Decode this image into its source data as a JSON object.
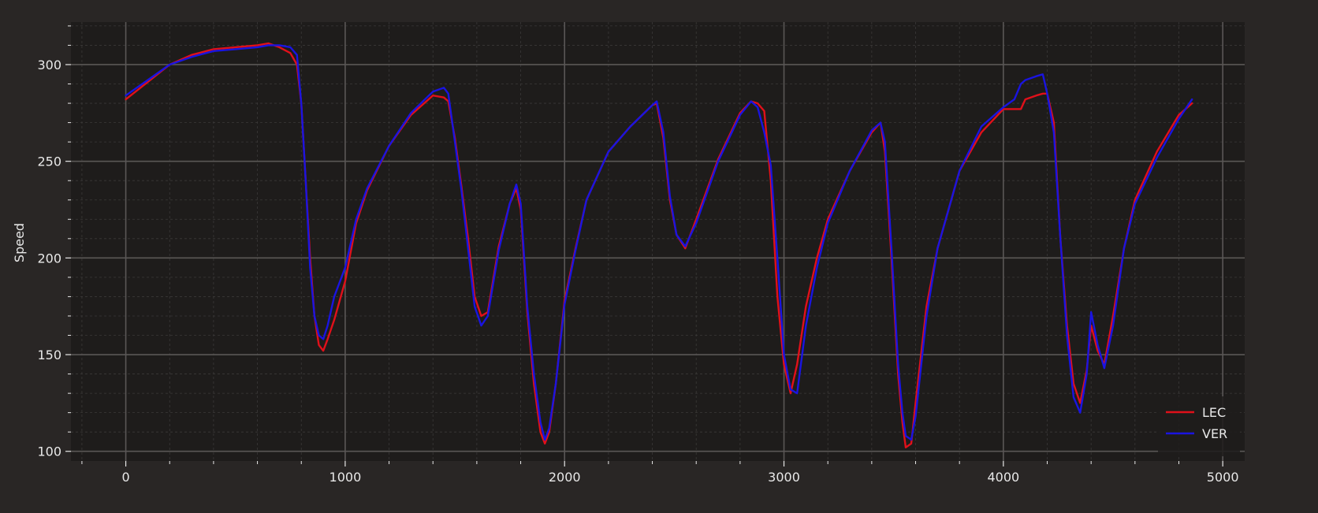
{
  "chart_data": {
    "type": "line",
    "title": "",
    "xlabel": "",
    "ylabel": "Speed",
    "xlim": [
      -250,
      5100
    ],
    "ylim": [
      95,
      322
    ],
    "xticks": [
      0,
      1000,
      2000,
      3000,
      4000,
      5000
    ],
    "yticks": [
      100,
      150,
      200,
      250,
      300
    ],
    "xtick_labels": [
      "0",
      "1000",
      "2000",
      "3000",
      "4000",
      "5000"
    ],
    "ytick_labels": [
      "100",
      "150",
      "200",
      "250",
      "300"
    ],
    "grid": true,
    "legend_position": "lower-right",
    "colors": {
      "figure_bg": "#292625",
      "axes_bg": "#1e1c1b",
      "major_grid": "#5a5756",
      "minor_grid": "#3b3938",
      "text": "#e8e8e8"
    },
    "series": [
      {
        "name": "LEC",
        "color": "#e0101a",
        "x": [
          0,
          100,
          200,
          300,
          400,
          500,
          600,
          650,
          700,
          750,
          780,
          800,
          820,
          840,
          860,
          880,
          900,
          920,
          950,
          1000,
          1050,
          1100,
          1200,
          1300,
          1400,
          1450,
          1470,
          1500,
          1530,
          1560,
          1590,
          1620,
          1650,
          1700,
          1750,
          1780,
          1800,
          1830,
          1860,
          1890,
          1910,
          1930,
          1960,
          2000,
          2050,
          2100,
          2200,
          2300,
          2400,
          2420,
          2450,
          2480,
          2510,
          2550,
          2600,
          2700,
          2800,
          2850,
          2880,
          2910,
          2940,
          2970,
          3000,
          3030,
          3060,
          3100,
          3150,
          3200,
          3300,
          3400,
          3440,
          3460,
          3490,
          3520,
          3540,
          3555,
          3580,
          3600,
          3650,
          3700,
          3800,
          3900,
          4000,
          4050,
          4080,
          4100,
          4150,
          4180,
          4200,
          4230,
          4260,
          4290,
          4320,
          4350,
          4380,
          4400,
          4430,
          4460,
          4500,
          4550,
          4600,
          4700,
          4800,
          4860
        ],
        "y": [
          282,
          291,
          300,
          305,
          308,
          309,
          310,
          311,
          309,
          306,
          300,
          280,
          240,
          200,
          170,
          155,
          152,
          158,
          168,
          188,
          218,
          235,
          258,
          274,
          284,
          283,
          281,
          262,
          237,
          210,
          180,
          170,
          172,
          206,
          228,
          236,
          225,
          172,
          135,
          110,
          104,
          110,
          135,
          178,
          205,
          230,
          255,
          268,
          279,
          280,
          262,
          230,
          212,
          205,
          220,
          251,
          275,
          281,
          280,
          276,
          240,
          180,
          145,
          130,
          145,
          175,
          200,
          220,
          245,
          265,
          270,
          255,
          200,
          140,
          115,
          102,
          104,
          125,
          175,
          205,
          245,
          265,
          277,
          277,
          277,
          282,
          284,
          285,
          285,
          270,
          210,
          165,
          135,
          125,
          142,
          165,
          152,
          145,
          170,
          205,
          230,
          255,
          274,
          280
        ]
      },
      {
        "name": "VER",
        "color": "#1a14e0",
        "x": [
          0,
          100,
          200,
          300,
          400,
          500,
          600,
          650,
          700,
          750,
          780,
          800,
          820,
          840,
          860,
          880,
          900,
          920,
          950,
          1000,
          1050,
          1100,
          1200,
          1300,
          1400,
          1450,
          1470,
          1500,
          1530,
          1560,
          1590,
          1620,
          1650,
          1700,
          1750,
          1780,
          1800,
          1830,
          1860,
          1890,
          1910,
          1930,
          1960,
          2000,
          2050,
          2100,
          2200,
          2300,
          2400,
          2420,
          2450,
          2480,
          2510,
          2550,
          2600,
          2700,
          2800,
          2850,
          2880,
          2910,
          2940,
          2970,
          3000,
          3030,
          3060,
          3100,
          3150,
          3200,
          3300,
          3400,
          3440,
          3460,
          3490,
          3520,
          3540,
          3555,
          3580,
          3600,
          3650,
          3700,
          3800,
          3900,
          4000,
          4050,
          4080,
          4100,
          4150,
          4180,
          4200,
          4230,
          4260,
          4290,
          4320,
          4350,
          4380,
          4400,
          4430,
          4460,
          4500,
          4550,
          4600,
          4700,
          4800,
          4860
        ],
        "y": [
          284,
          292,
          300,
          304,
          307,
          308,
          309,
          310,
          310,
          309,
          305,
          280,
          240,
          195,
          170,
          160,
          158,
          165,
          180,
          195,
          220,
          236,
          258,
          275,
          286,
          288,
          285,
          260,
          235,
          205,
          175,
          165,
          170,
          204,
          228,
          238,
          228,
          175,
          140,
          115,
          106,
          112,
          135,
          176,
          204,
          230,
          255,
          268,
          279,
          281,
          265,
          232,
          212,
          206,
          218,
          250,
          274,
          281,
          278,
          265,
          248,
          200,
          150,
          132,
          130,
          165,
          195,
          218,
          245,
          266,
          270,
          260,
          205,
          145,
          120,
          108,
          106,
          118,
          170,
          205,
          245,
          268,
          278,
          282,
          290,
          292,
          294,
          295,
          285,
          265,
          210,
          160,
          128,
          120,
          140,
          172,
          155,
          143,
          165,
          205,
          228,
          252,
          272,
          282
        ]
      }
    ]
  }
}
